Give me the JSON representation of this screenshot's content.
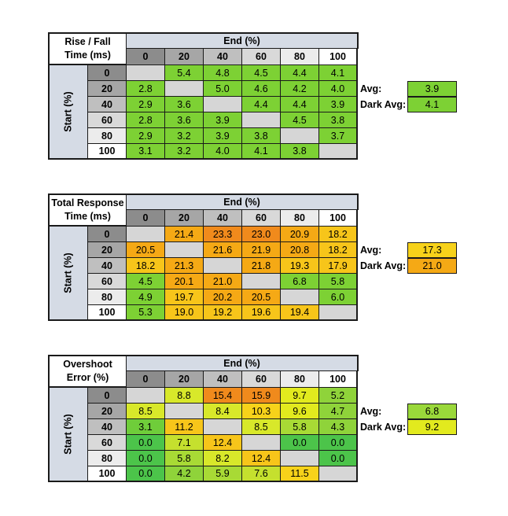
{
  "chart_data": [
    {
      "type": "table",
      "title_line1": "Rise / Fall",
      "title_line2": "Time (ms)",
      "col_header": "End (%)",
      "row_header": "Start (%)",
      "columns": [
        "0",
        "20",
        "40",
        "60",
        "80",
        "100"
      ],
      "rows": [
        "0",
        "20",
        "40",
        "60",
        "80",
        "100"
      ],
      "values": [
        [
          null,
          "5.4",
          "4.8",
          "4.5",
          "4.4",
          "4.1"
        ],
        [
          "2.8",
          null,
          "5.0",
          "4.6",
          "4.2",
          "4.0"
        ],
        [
          "2.9",
          "3.6",
          null,
          "4.4",
          "4.4",
          "3.9"
        ],
        [
          "2.8",
          "3.6",
          "3.9",
          null,
          "4.5",
          "3.8"
        ],
        [
          "2.9",
          "3.2",
          "3.9",
          "3.8",
          null,
          "3.7"
        ],
        [
          "3.1",
          "3.2",
          "4.0",
          "4.1",
          "3.8",
          null
        ]
      ],
      "colors": [
        [
          null,
          "#7dd134",
          "#7dd134",
          "#7dd134",
          "#7dd134",
          "#7dd134"
        ],
        [
          "#7dd134",
          null,
          "#7dd134",
          "#7dd134",
          "#7dd134",
          "#7dd134"
        ],
        [
          "#7dd134",
          "#7dd134",
          null,
          "#7dd134",
          "#7dd134",
          "#7dd134"
        ],
        [
          "#7dd134",
          "#7dd134",
          "#7dd134",
          null,
          "#7dd134",
          "#7dd134"
        ],
        [
          "#7dd134",
          "#7dd134",
          "#7dd134",
          "#7dd134",
          null,
          "#7dd134"
        ],
        [
          "#7dd134",
          "#7dd134",
          "#7dd134",
          "#7dd134",
          "#7dd134",
          null
        ]
      ],
      "avg_label": "Avg:",
      "avg": "3.9",
      "avg_color": "#7dd134",
      "dark_avg_label": "Dark Avg:",
      "dark_avg": "4.1",
      "dark_avg_color": "#7dd134"
    },
    {
      "type": "table",
      "title_line1": "Total Response",
      "title_line2": "Time (ms)",
      "col_header": "End (%)",
      "row_header": "Start (%)",
      "columns": [
        "0",
        "20",
        "40",
        "60",
        "80",
        "100"
      ],
      "rows": [
        "0",
        "20",
        "40",
        "60",
        "80",
        "100"
      ],
      "values": [
        [
          null,
          "21.4",
          "23.3",
          "23.0",
          "20.9",
          "18.2"
        ],
        [
          "20.5",
          null,
          "21.6",
          "21.9",
          "20.8",
          "18.2"
        ],
        [
          "18.2",
          "21.3",
          null,
          "21.8",
          "19.3",
          "17.9"
        ],
        [
          "4.5",
          "20.1",
          "21.0",
          null,
          "6.8",
          "5.8"
        ],
        [
          "4.9",
          "19.7",
          "20.2",
          "20.5",
          null,
          "6.0"
        ],
        [
          "5.3",
          "19.0",
          "19.2",
          "19.6",
          "19.4",
          null
        ]
      ],
      "colors": [
        [
          null,
          "#f5a915",
          "#f08a1c",
          "#f08a1c",
          "#f5a915",
          "#f7c51a"
        ],
        [
          "#f5a915",
          null,
          "#f5a915",
          "#f5a915",
          "#f5a915",
          "#f7c51a"
        ],
        [
          "#f7c51a",
          "#f5a915",
          null,
          "#f5a915",
          "#f7c51a",
          "#f7c51a"
        ],
        [
          "#7dd134",
          "#f5a915",
          "#f5a915",
          null,
          "#7dd134",
          "#7dd134"
        ],
        [
          "#7dd134",
          "#f7c51a",
          "#f5a915",
          "#f5a915",
          null,
          "#7dd134"
        ],
        [
          "#7dd134",
          "#f7c51a",
          "#f7c51a",
          "#f7c51a",
          "#f7c51a",
          null
        ]
      ],
      "avg_label": "Avg:",
      "avg": "17.3",
      "avg_color": "#f7d21a",
      "dark_avg_label": "Dark Avg:",
      "dark_avg": "21.0",
      "dark_avg_color": "#f5a915"
    },
    {
      "type": "table",
      "title_line1": "Overshoot",
      "title_line2": "Error (%)",
      "col_header": "End (%)",
      "row_header": "Start (%)",
      "columns": [
        "0",
        "20",
        "40",
        "60",
        "80",
        "100"
      ],
      "rows": [
        "0",
        "20",
        "40",
        "60",
        "80",
        "100"
      ],
      "values": [
        [
          null,
          "8.8",
          "15.4",
          "15.9",
          "9.7",
          "5.2"
        ],
        [
          "8.5",
          null,
          "8.4",
          "10.3",
          "9.6",
          "4.7"
        ],
        [
          "3.1",
          "11.2",
          null,
          "8.5",
          "5.8",
          "4.3"
        ],
        [
          "0.0",
          "7.1",
          "12.4",
          null,
          "0.0",
          "0.0"
        ],
        [
          "0.0",
          "5.8",
          "8.2",
          "12.4",
          null,
          "0.0"
        ],
        [
          "0.0",
          "4.2",
          "5.9",
          "7.6",
          "11.5",
          null
        ]
      ],
      "colors": [
        [
          null,
          "#d8e82a",
          "#f08a1c",
          "#f08a1c",
          "#e2ea1e",
          "#8fd33a"
        ],
        [
          "#d8e82a",
          null,
          "#d8e82a",
          "#f7d21a",
          "#e2ea1e",
          "#8fd33a"
        ],
        [
          "#6fcd3a",
          "#f7c51a",
          null,
          "#d8e82a",
          "#a8da35",
          "#8fd33a"
        ],
        [
          "#4cc44a",
          "#c5e02e",
          "#f7c51a",
          null,
          "#4cc44a",
          "#4cc44a"
        ],
        [
          "#4cc44a",
          "#a8da35",
          "#d8e82a",
          "#f7c51a",
          null,
          "#4cc44a"
        ],
        [
          "#4cc44a",
          "#8fd33a",
          "#a8da35",
          "#c5e02e",
          "#f7d21a",
          null
        ]
      ],
      "avg_label": "Avg:",
      "avg": "6.8",
      "avg_color": "#9ad83a",
      "dark_avg_label": "Dark Avg:",
      "dark_avg": "9.2",
      "dark_avg_color": "#e2ea1e"
    }
  ],
  "palette": {
    "empty_cell": "#d6d6d6",
    "col_header_bg": [
      "#8c8c8c",
      "#a6a6a6",
      "#bfbfbf",
      "#d9d9d9",
      "#ececec",
      "#ffffff"
    ],
    "row_header_bg": [
      "#8c8c8c",
      "#a6a6a6",
      "#bfbfbf",
      "#d9d9d9",
      "#ececec",
      "#ffffff"
    ]
  }
}
